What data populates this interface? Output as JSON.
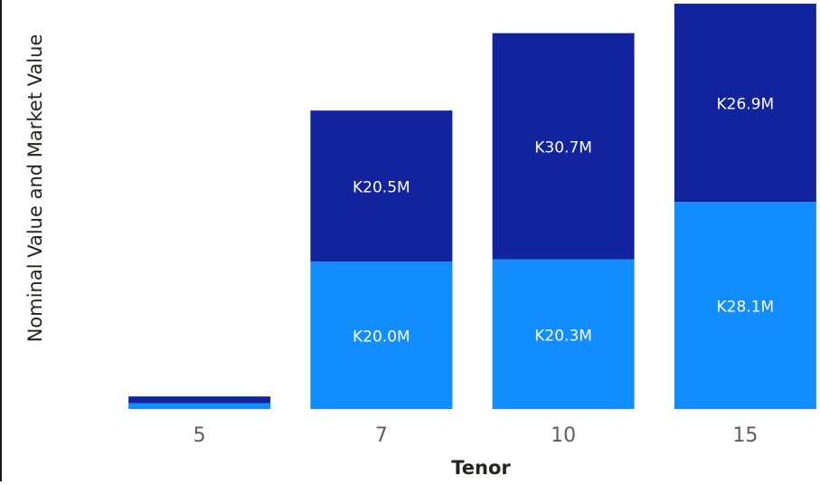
{
  "chart_data": {
    "type": "bar",
    "stacked": true,
    "categories": [
      "5",
      "7",
      "10",
      "15"
    ],
    "series": [
      {
        "color": "#118dff",
        "values": [
          0.8,
          20.0,
          20.3,
          28.1
        ],
        "labels": [
          "",
          "K20.0M",
          "K20.3M",
          "K28.1M"
        ]
      },
      {
        "color": "#12239e",
        "values": [
          0.9,
          20.5,
          30.7,
          26.9
        ],
        "labels": [
          "",
          "K20.5M",
          "K30.7M",
          "K26.9M"
        ]
      }
    ],
    "xlabel": "Tenor",
    "ylabel": "Nominal Value and Market Value",
    "ylim": [
      0,
      55.5
    ],
    "grid": false,
    "legend": "none"
  }
}
